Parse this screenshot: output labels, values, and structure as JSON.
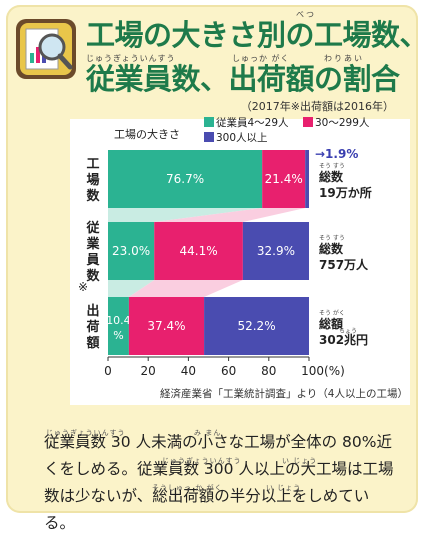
{
  "header": {
    "title_line1": "工場の大きさ別の工場数、",
    "title_line2": "従業員数、出荷額の割合",
    "ruby_betsu": "べつ",
    "ruby_juugyouinsuu": "じゅうぎょういんすう",
    "ruby_shukkagaku": "しゅっか がく",
    "ruby_wariai": "わりあい",
    "note": "（2017年※出荷額は2016年）"
  },
  "chart_data": {
    "type": "bar",
    "orientation": "horizontal",
    "stacked": true,
    "legend_title": "工場の大きさ",
    "legend": [
      {
        "name": "従業員4〜29人",
        "color": "#2bb392"
      },
      {
        "name": "30〜299人",
        "color": "#e8206e"
      },
      {
        "name": "300人以上",
        "color": "#4a4cb0"
      }
    ],
    "categories": [
      "工場数",
      "従業員数",
      "※出荷額"
    ],
    "category_lines": [
      [
        "工",
        "場",
        "数"
      ],
      [
        "従",
        "業",
        "員",
        "数"
      ],
      [
        "出",
        "荷",
        "額"
      ]
    ],
    "category_prefix": [
      "",
      "",
      "※"
    ],
    "series": [
      {
        "name": "従業員4〜29人",
        "values": [
          76.7,
          23.0,
          10.4
        ],
        "labels": [
          "76.7%",
          "23.0%",
          "10.4%"
        ]
      },
      {
        "name": "30〜299人",
        "values": [
          21.4,
          44.1,
          37.4
        ],
        "labels": [
          "21.4%",
          "44.1%",
          "37.4%"
        ]
      },
      {
        "name": "300人以上",
        "values": [
          1.9,
          32.9,
          52.2
        ],
        "labels": [
          "1.9%",
          "32.9%",
          "52.2%"
        ]
      }
    ],
    "totals": [
      {
        "ruby": "そう すう",
        "label": "総数",
        "value": "19万か所"
      },
      {
        "ruby": "そう すう",
        "label": "総数",
        "value": "757万人"
      },
      {
        "ruby": "そう がく",
        "label": "総額",
        "value": "302兆円",
        "value_ruby": "ちょう"
      }
    ],
    "xlim": [
      0,
      100
    ],
    "xticks": [
      "0",
      "20",
      "40",
      "60",
      "80",
      "100(%)"
    ],
    "source": "経済産業省「工業統計調査」より（4人以上の工場）"
  },
  "body_text": {
    "line1": "従業員数 30 人未満の小さな工場が全体の 80%近",
    "line2": "くをしめる。従業員数 300 人以上の大工場は工場",
    "line3": "数は少ないが、総出荷額の半分以上をしめている。",
    "ruby1": "じゅうぎょういんすう",
    "ruby2": "み まん",
    "ruby3": "じゅうぎょういんすう",
    "ruby4": "い じょう",
    "ruby5": "そうしゅっ か がく",
    "ruby6": "い じょう"
  }
}
